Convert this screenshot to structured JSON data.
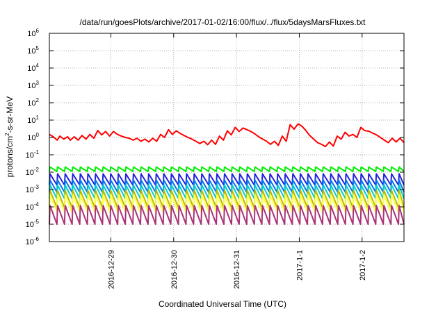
{
  "chart_data": {
    "type": "line",
    "title": "/data/run/goesPlots/archive/2017-01-02/16:00/flux/../flux/5daysMarsFluxes.txt",
    "xlabel": "Coordinated Universal Time (UTC)",
    "ylabel": {
      "prefix": "protons/cm",
      "superscript": "2",
      "suffix": "-s-sr-MeV"
    },
    "y_scale": "log",
    "ylim": [
      1e-06,
      1000000.0
    ],
    "y_ticks": [
      {
        "value": 1000000.0,
        "base": "10",
        "exp": "6"
      },
      {
        "value": 100000.0,
        "base": "10",
        "exp": "5"
      },
      {
        "value": 10000.0,
        "base": "10",
        "exp": "4"
      },
      {
        "value": 1000.0,
        "base": "10",
        "exp": "3"
      },
      {
        "value": 100.0,
        "base": "10",
        "exp": "2"
      },
      {
        "value": 10.0,
        "base": "10",
        "exp": "1"
      },
      {
        "value": 1.0,
        "base": "10",
        "exp": "0"
      },
      {
        "value": 0.1,
        "base": "10",
        "exp": "-1"
      },
      {
        "value": 0.01,
        "base": "10",
        "exp": "-2"
      },
      {
        "value": 0.001,
        "base": "10",
        "exp": "-3"
      },
      {
        "value": 0.0001,
        "base": "10",
        "exp": "-4"
      },
      {
        "value": 1e-05,
        "base": "10",
        "exp": "-5"
      },
      {
        "value": 1e-06,
        "base": "10",
        "exp": "-6"
      }
    ],
    "xlim": [
      "2016-12-28T00:30",
      "2017-01-02T16:00"
    ],
    "x_ticks": [
      {
        "value": "2016-12-29T00:00",
        "label": "2016-12-29"
      },
      {
        "value": "2016-12-30T00:00",
        "label": "2016-12-30"
      },
      {
        "value": "2016-12-31T00:00",
        "label": "2016-12-31"
      },
      {
        "value": "2017-01-01T00:00",
        "label": "2017-1-1"
      },
      {
        "value": "2017-01-02T00:00",
        "label": "2017-1-2"
      }
    ],
    "grid": true,
    "series": [
      {
        "color": "#ff0000",
        "points": [
          [
            "2016-12-28T00:30",
            1.5
          ],
          [
            "2016-12-28T02:00",
            1.1
          ],
          [
            "2016-12-28T03:30",
            0.7
          ],
          [
            "2016-12-28T04:30",
            1.2
          ],
          [
            "2016-12-28T06:00",
            0.8
          ],
          [
            "2016-12-28T07:30",
            1.1
          ],
          [
            "2016-12-28T08:30",
            0.7
          ],
          [
            "2016-12-28T10:00",
            1.1
          ],
          [
            "2016-12-28T11:30",
            0.7
          ],
          [
            "2016-12-28T13:00",
            1.3
          ],
          [
            "2016-12-28T14:30",
            0.8
          ],
          [
            "2016-12-28T16:00",
            1.5
          ],
          [
            "2016-12-28T17:30",
            0.9
          ],
          [
            "2016-12-28T19:00",
            2.5
          ],
          [
            "2016-12-28T20:30",
            1.4
          ],
          [
            "2016-12-28T22:00",
            2.2
          ],
          [
            "2016-12-28T23:30",
            1.2
          ],
          [
            "2016-12-29T01:00",
            2.2
          ],
          [
            "2016-12-29T02:30",
            1.5
          ],
          [
            "2016-12-29T04:00",
            1.2
          ],
          [
            "2016-12-29T05:30",
            1.0
          ],
          [
            "2016-12-29T07:00",
            0.9
          ],
          [
            "2016-12-29T08:30",
            0.7
          ],
          [
            "2016-12-29T10:00",
            0.9
          ],
          [
            "2016-12-29T11:30",
            0.6
          ],
          [
            "2016-12-29T13:00",
            0.8
          ],
          [
            "2016-12-29T14:30",
            0.55
          ],
          [
            "2016-12-29T16:00",
            0.9
          ],
          [
            "2016-12-29T17:30",
            0.6
          ],
          [
            "2016-12-29T19:00",
            1.5
          ],
          [
            "2016-12-29T20:30",
            1.0
          ],
          [
            "2016-12-29T22:00",
            2.8
          ],
          [
            "2016-12-29T23:30",
            1.5
          ],
          [
            "2016-12-30T01:00",
            2.4
          ],
          [
            "2016-12-30T02:30",
            1.7
          ],
          [
            "2016-12-30T04:00",
            1.3
          ],
          [
            "2016-12-30T05:30",
            1.0
          ],
          [
            "2016-12-30T07:00",
            0.8
          ],
          [
            "2016-12-30T08:30",
            0.6
          ],
          [
            "2016-12-30T10:00",
            0.45
          ],
          [
            "2016-12-30T11:30",
            0.6
          ],
          [
            "2016-12-30T13:00",
            0.38
          ],
          [
            "2016-12-30T14:30",
            0.7
          ],
          [
            "2016-12-30T16:00",
            0.4
          ],
          [
            "2016-12-30T17:30",
            1.2
          ],
          [
            "2016-12-30T19:00",
            0.7
          ],
          [
            "2016-12-30T20:30",
            2.4
          ],
          [
            "2016-12-30T22:00",
            1.4
          ],
          [
            "2016-12-30T23:30",
            3.8
          ],
          [
            "2016-12-31T01:00",
            2.2
          ],
          [
            "2016-12-31T02:30",
            3.5
          ],
          [
            "2016-12-31T04:00",
            2.8
          ],
          [
            "2016-12-31T05:30",
            2.2
          ],
          [
            "2016-12-31T07:00",
            1.6
          ],
          [
            "2016-12-31T08:30",
            1.1
          ],
          [
            "2016-12-31T10:00",
            0.8
          ],
          [
            "2016-12-31T11:30",
            0.6
          ],
          [
            "2016-12-31T13:00",
            0.4
          ],
          [
            "2016-12-31T14:30",
            0.6
          ],
          [
            "2016-12-31T16:00",
            0.35
          ],
          [
            "2016-12-31T17:30",
            1.2
          ],
          [
            "2016-12-31T19:00",
            0.6
          ],
          [
            "2016-12-31T20:30",
            5.5
          ],
          [
            "2016-12-31T22:00",
            3.0
          ],
          [
            "2016-12-31T23:30",
            6.0
          ],
          [
            "2017-01-01T01:00",
            4.5
          ],
          [
            "2017-01-01T02:30",
            2.5
          ],
          [
            "2017-01-01T04:00",
            1.3
          ],
          [
            "2017-01-01T05:30",
            0.8
          ],
          [
            "2017-01-01T07:00",
            0.5
          ],
          [
            "2017-01-01T08:30",
            0.4
          ],
          [
            "2017-01-01T10:00",
            0.3
          ],
          [
            "2017-01-01T11:30",
            0.55
          ],
          [
            "2017-01-01T13:00",
            0.32
          ],
          [
            "2017-01-01T14:30",
            1.2
          ],
          [
            "2017-01-01T16:00",
            0.8
          ],
          [
            "2017-01-01T17:30",
            2.0
          ],
          [
            "2017-01-01T19:00",
            1.2
          ],
          [
            "2017-01-01T20:30",
            1.5
          ],
          [
            "2017-01-01T22:00",
            1.0
          ],
          [
            "2017-01-01T23:30",
            3.8
          ],
          [
            "2017-01-02T01:00",
            2.5
          ],
          [
            "2017-01-02T02:30",
            2.3
          ],
          [
            "2017-01-02T04:00",
            1.8
          ],
          [
            "2017-01-02T05:30",
            1.4
          ],
          [
            "2017-01-02T07:00",
            1.0
          ],
          [
            "2017-01-02T08:30",
            0.7
          ],
          [
            "2017-01-02T10:00",
            0.5
          ],
          [
            "2017-01-02T11:30",
            0.9
          ],
          [
            "2017-01-02T13:00",
            0.55
          ],
          [
            "2017-01-02T14:30",
            0.9
          ],
          [
            "2017-01-02T16:00",
            0.5
          ]
        ]
      },
      {
        "color": "#00ee00",
        "sawtooth": {
          "start": "2016-12-28T00:30",
          "period_hours": 2.9,
          "high": 0.02,
          "low": 0.011
        }
      },
      {
        "color": "#2222dd",
        "sawtooth": {
          "start": "2016-12-28T00:30",
          "period_hours": 2.9,
          "high": 0.008,
          "low": 0.0018
        }
      },
      {
        "color": "#0077ee",
        "sawtooth": {
          "start": "2016-12-28T00:30",
          "period_hours": 2.9,
          "high": 0.0035,
          "low": 0.0007
        }
      },
      {
        "color": "#00cccc",
        "sawtooth": {
          "start": "2016-12-28T00:30",
          "period_hours": 2.9,
          "high": 0.0018,
          "low": 0.0003
        }
      },
      {
        "color": "#bbbb00",
        "sawtooth": {
          "start": "2016-12-28T00:30",
          "period_hours": 2.9,
          "high": 0.0009,
          "low": 9e-05
        }
      },
      {
        "color": "#ffff44",
        "sawtooth": {
          "start": "2016-12-28T00:30",
          "period_hours": 2.9,
          "high": 0.0005,
          "low": 5e-05
        }
      },
      {
        "color": "#aa3377",
        "sawtooth": {
          "start": "2016-12-28T00:30",
          "period_hours": 2.9,
          "high": 0.00012,
          "low": 1e-05
        }
      }
    ]
  }
}
